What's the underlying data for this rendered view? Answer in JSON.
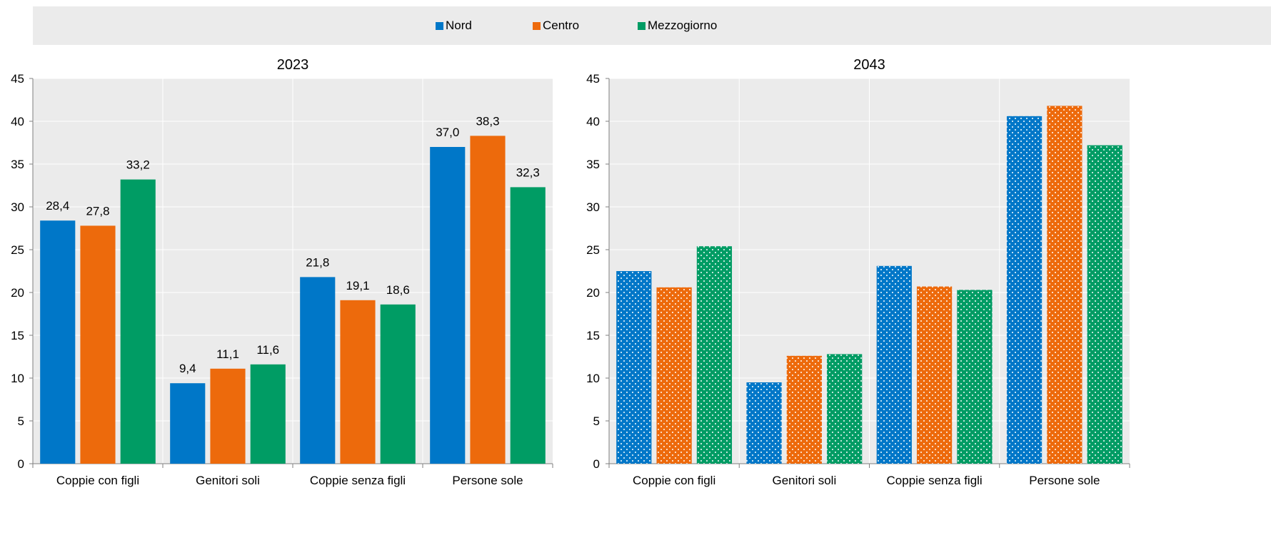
{
  "legend": {
    "items": [
      {
        "label": "Nord",
        "color": "#0077c8"
      },
      {
        "label": "Centro",
        "color": "#ed6a0c"
      },
      {
        "label": "Mezzogiorno",
        "color": "#009c64"
      }
    ]
  },
  "chart_data": [
    {
      "type": "bar",
      "title": "2023",
      "categories": [
        "Coppie con figli",
        "Genitori soli",
        "Coppie senza figli",
        "Persone sole"
      ],
      "series": [
        {
          "name": "Nord",
          "values": [
            28.4,
            9.4,
            21.8,
            37.0
          ],
          "labels": [
            "28,4",
            "9,4",
            "21,8",
            "37,0"
          ]
        },
        {
          "name": "Centro",
          "values": [
            27.8,
            11.1,
            19.1,
            38.3
          ],
          "labels": [
            "27,8",
            "11,1",
            "19,1",
            "38,3"
          ]
        },
        {
          "name": "Mezzogiorno",
          "values": [
            33.2,
            11.6,
            18.6,
            32.3
          ],
          "labels": [
            "33,2",
            "11,6",
            "18,6",
            "32,3"
          ]
        }
      ],
      "ylim": [
        0,
        45
      ],
      "yticks": [
        0,
        5,
        10,
        15,
        20,
        25,
        30,
        35,
        40,
        45
      ],
      "grid": true,
      "fill": "solid",
      "legend": "top"
    },
    {
      "type": "bar",
      "title": "2043",
      "categories": [
        "Coppie con figli",
        "Genitori soli",
        "Coppie senza figli",
        "Persone sole"
      ],
      "series": [
        {
          "name": "Nord",
          "values": [
            22.5,
            9.5,
            23.1,
            40.6
          ]
        },
        {
          "name": "Centro",
          "values": [
            20.6,
            12.6,
            20.7,
            41.8
          ]
        },
        {
          "name": "Mezzogiorno",
          "values": [
            25.4,
            12.8,
            20.3,
            37.2
          ]
        }
      ],
      "ylim": [
        0,
        45
      ],
      "yticks": [
        0,
        5,
        10,
        15,
        20,
        25,
        30,
        35,
        40,
        45
      ],
      "grid": true,
      "fill": "dotted",
      "legend": "top"
    }
  ]
}
